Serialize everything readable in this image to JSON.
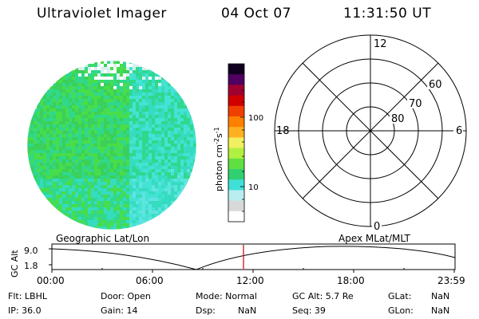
{
  "header": {
    "title": "Ultraviolet Imager",
    "date": "04 Oct 07",
    "time": "11:31:50 UT"
  },
  "colorbar": {
    "label": "photon cm",
    "label_sup1": "-2",
    "label_mid": "s",
    "label_sup2": "-1",
    "tick_labels": [
      "100",
      "10"
    ],
    "colors": [
      "#ffffff",
      "#d8d8d8",
      "#b8eef0",
      "#40e0d8",
      "#30d070",
      "#60e040",
      "#b0f040",
      "#f0f060",
      "#ffb020",
      "#ff8000",
      "#f04000",
      "#d00000",
      "#a00030",
      "#500060",
      "#100020"
    ]
  },
  "image_panel": {
    "fill_colors": [
      "#3ad05a",
      "#48dd4a",
      "#30d88c",
      "#36dcc0",
      "#44e3d4",
      "#5fe4e0"
    ]
  },
  "polar_grid": {
    "labels": [
      "12",
      "18",
      "6",
      "0",
      "60",
      "70",
      "80"
    ]
  },
  "timeline": {
    "ylabel": "GC Alt",
    "y_ticks": [
      "9.0",
      "1.8"
    ],
    "left_title": "Geographic Lat/Lon",
    "right_title": "Apex  MLat/MLT",
    "x_ticks": [
      "00:00",
      "06:00",
      "12:00",
      "18:00",
      "23:59"
    ],
    "current_marker_color": "#cc0000"
  },
  "status": {
    "row1": [
      "Flt: LBHL",
      "Door: Open",
      "Mode: Normal",
      "GC Alt: 5.7 Re",
      "GLat:",
      "NaN"
    ],
    "row2": [
      "IP: 36.0",
      "Gain: 14",
      "Dsp:",
      "NaN",
      "Seq: 39",
      "GLon:",
      "NaN"
    ]
  }
}
